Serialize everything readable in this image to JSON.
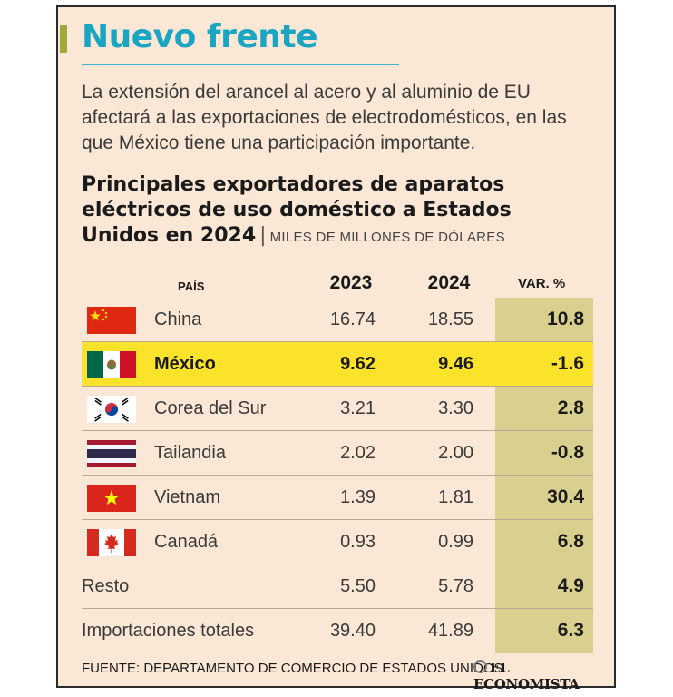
{
  "header": {
    "title": "Nuevo frente",
    "subtitle": "La extensión del arancel al acero y al aluminio de EU afectará a las exportaciones de electrodomésticos, en las que México tiene una participación importante."
  },
  "chart_data": {
    "type": "table",
    "title": "Principales exportadores de aparatos eléctricos de uso doméstico a Estados Unidos en 2024",
    "units": "MILES DE MILLONES DE DÓLARES",
    "columns": {
      "country": "PAÍS",
      "year1": "2023",
      "year2": "2024",
      "change": "VAR. %"
    },
    "rows": [
      {
        "name": "China",
        "flag": "china-flag-icon",
        "v2023": "16.74",
        "v2024": "18.55",
        "var": "10.8",
        "highlight": false
      },
      {
        "name": "México",
        "flag": "mexico-flag-icon",
        "v2023": "9.62",
        "v2024": "9.46",
        "var": "-1.6",
        "highlight": true
      },
      {
        "name": "Corea del Sur",
        "flag": "south-korea-flag-icon",
        "v2023": "3.21",
        "v2024": "3.30",
        "var": "2.8",
        "highlight": false
      },
      {
        "name": "Tailandia",
        "flag": "thailand-flag-icon",
        "v2023": "2.02",
        "v2024": "2.00",
        "var": "-0.8",
        "highlight": false
      },
      {
        "name": "Vietnam",
        "flag": "vietnam-flag-icon",
        "v2023": "1.39",
        "v2024": "1.81",
        "var": "30.4",
        "highlight": false
      },
      {
        "name": "Canadá",
        "flag": "canada-flag-icon",
        "v2023": "0.93",
        "v2024": "0.99",
        "var": "6.8",
        "highlight": false
      },
      {
        "name": "Resto",
        "flag": null,
        "v2023": "5.50",
        "v2024": "5.78",
        "var": "4.9",
        "highlight": false
      },
      {
        "name": "Importaciones totales",
        "flag": null,
        "v2023": "39.40",
        "v2024": "41.89",
        "var": "6.3",
        "highlight": false
      }
    ]
  },
  "footer": {
    "source": "FUENTE: DEPARTAMENTO DE COMERCIO DE ESTADOS UNIDOS.",
    "logo": "EL ECONOMISTA"
  },
  "colors": {
    "background": "#fbe7d5",
    "title": "#1aa5c3",
    "highlight_row": "#fbe32c",
    "var_column": "#d9d08f",
    "accent_bar": "#9fa83a"
  }
}
